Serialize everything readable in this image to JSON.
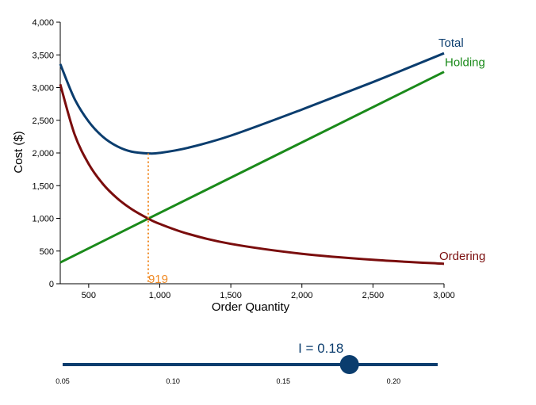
{
  "chart_data": {
    "type": "line",
    "xlabel": "Order Quantity",
    "ylabel": "Cost ($)",
    "xlim": [
      300,
      3000
    ],
    "ylim": [
      0,
      4000
    ],
    "x_ticks": [
      500,
      1000,
      1500,
      2000,
      2500,
      3000
    ],
    "y_ticks": [
      0,
      500,
      1000,
      1500,
      2000,
      2500,
      3000,
      3500,
      4000
    ],
    "x_tick_labels": [
      "500",
      "1,000",
      "1,500",
      "2,000",
      "2,500",
      "3,000"
    ],
    "y_tick_labels": [
      "0",
      "500",
      "1,000",
      "1,500",
      "2,000",
      "2,500",
      "3,000",
      "3,500",
      "4,000"
    ],
    "grid": false,
    "series": [
      {
        "name": "Total",
        "color": "#0b3d6e",
        "x": [
          300,
          400,
          500,
          600,
          700,
          800,
          919,
          1000,
          1200,
          1500,
          2000,
          2500,
          3000
        ],
        "y": [
          3360,
          2830,
          2480,
          2247,
          2102,
          2021,
          1993,
          2001,
          2080,
          2265,
          2664,
          3084,
          3525
        ]
      },
      {
        "name": "Holding",
        "color": "#1a8a1a",
        "x": [
          300,
          919,
          3000
        ],
        "y": [
          325,
          996,
          3240
        ]
      },
      {
        "name": "Ordering",
        "color": "#7a0d0d",
        "x": [
          300,
          400,
          500,
          600,
          700,
          800,
          919,
          1000,
          1200,
          1500,
          2000,
          2500,
          3000
        ],
        "y": [
          3050,
          2290,
          1832,
          1526,
          1308,
          1144,
          996,
          915,
          763,
          610,
          458,
          366,
          305
        ]
      }
    ],
    "annotations": [
      {
        "text": "919",
        "x": 919,
        "y": 1993,
        "color": "#f08a24",
        "style": "dashed-vertical"
      }
    ]
  },
  "slider": {
    "label": "I = 0.18",
    "value": 0.18,
    "min": 0.05,
    "max": 0.22,
    "ticks": [
      0.05,
      0.1,
      0.15,
      0.2
    ],
    "tick_labels": [
      "0.05",
      "0.10",
      "0.15",
      "0.20"
    ],
    "color": "#0b3d6e"
  }
}
